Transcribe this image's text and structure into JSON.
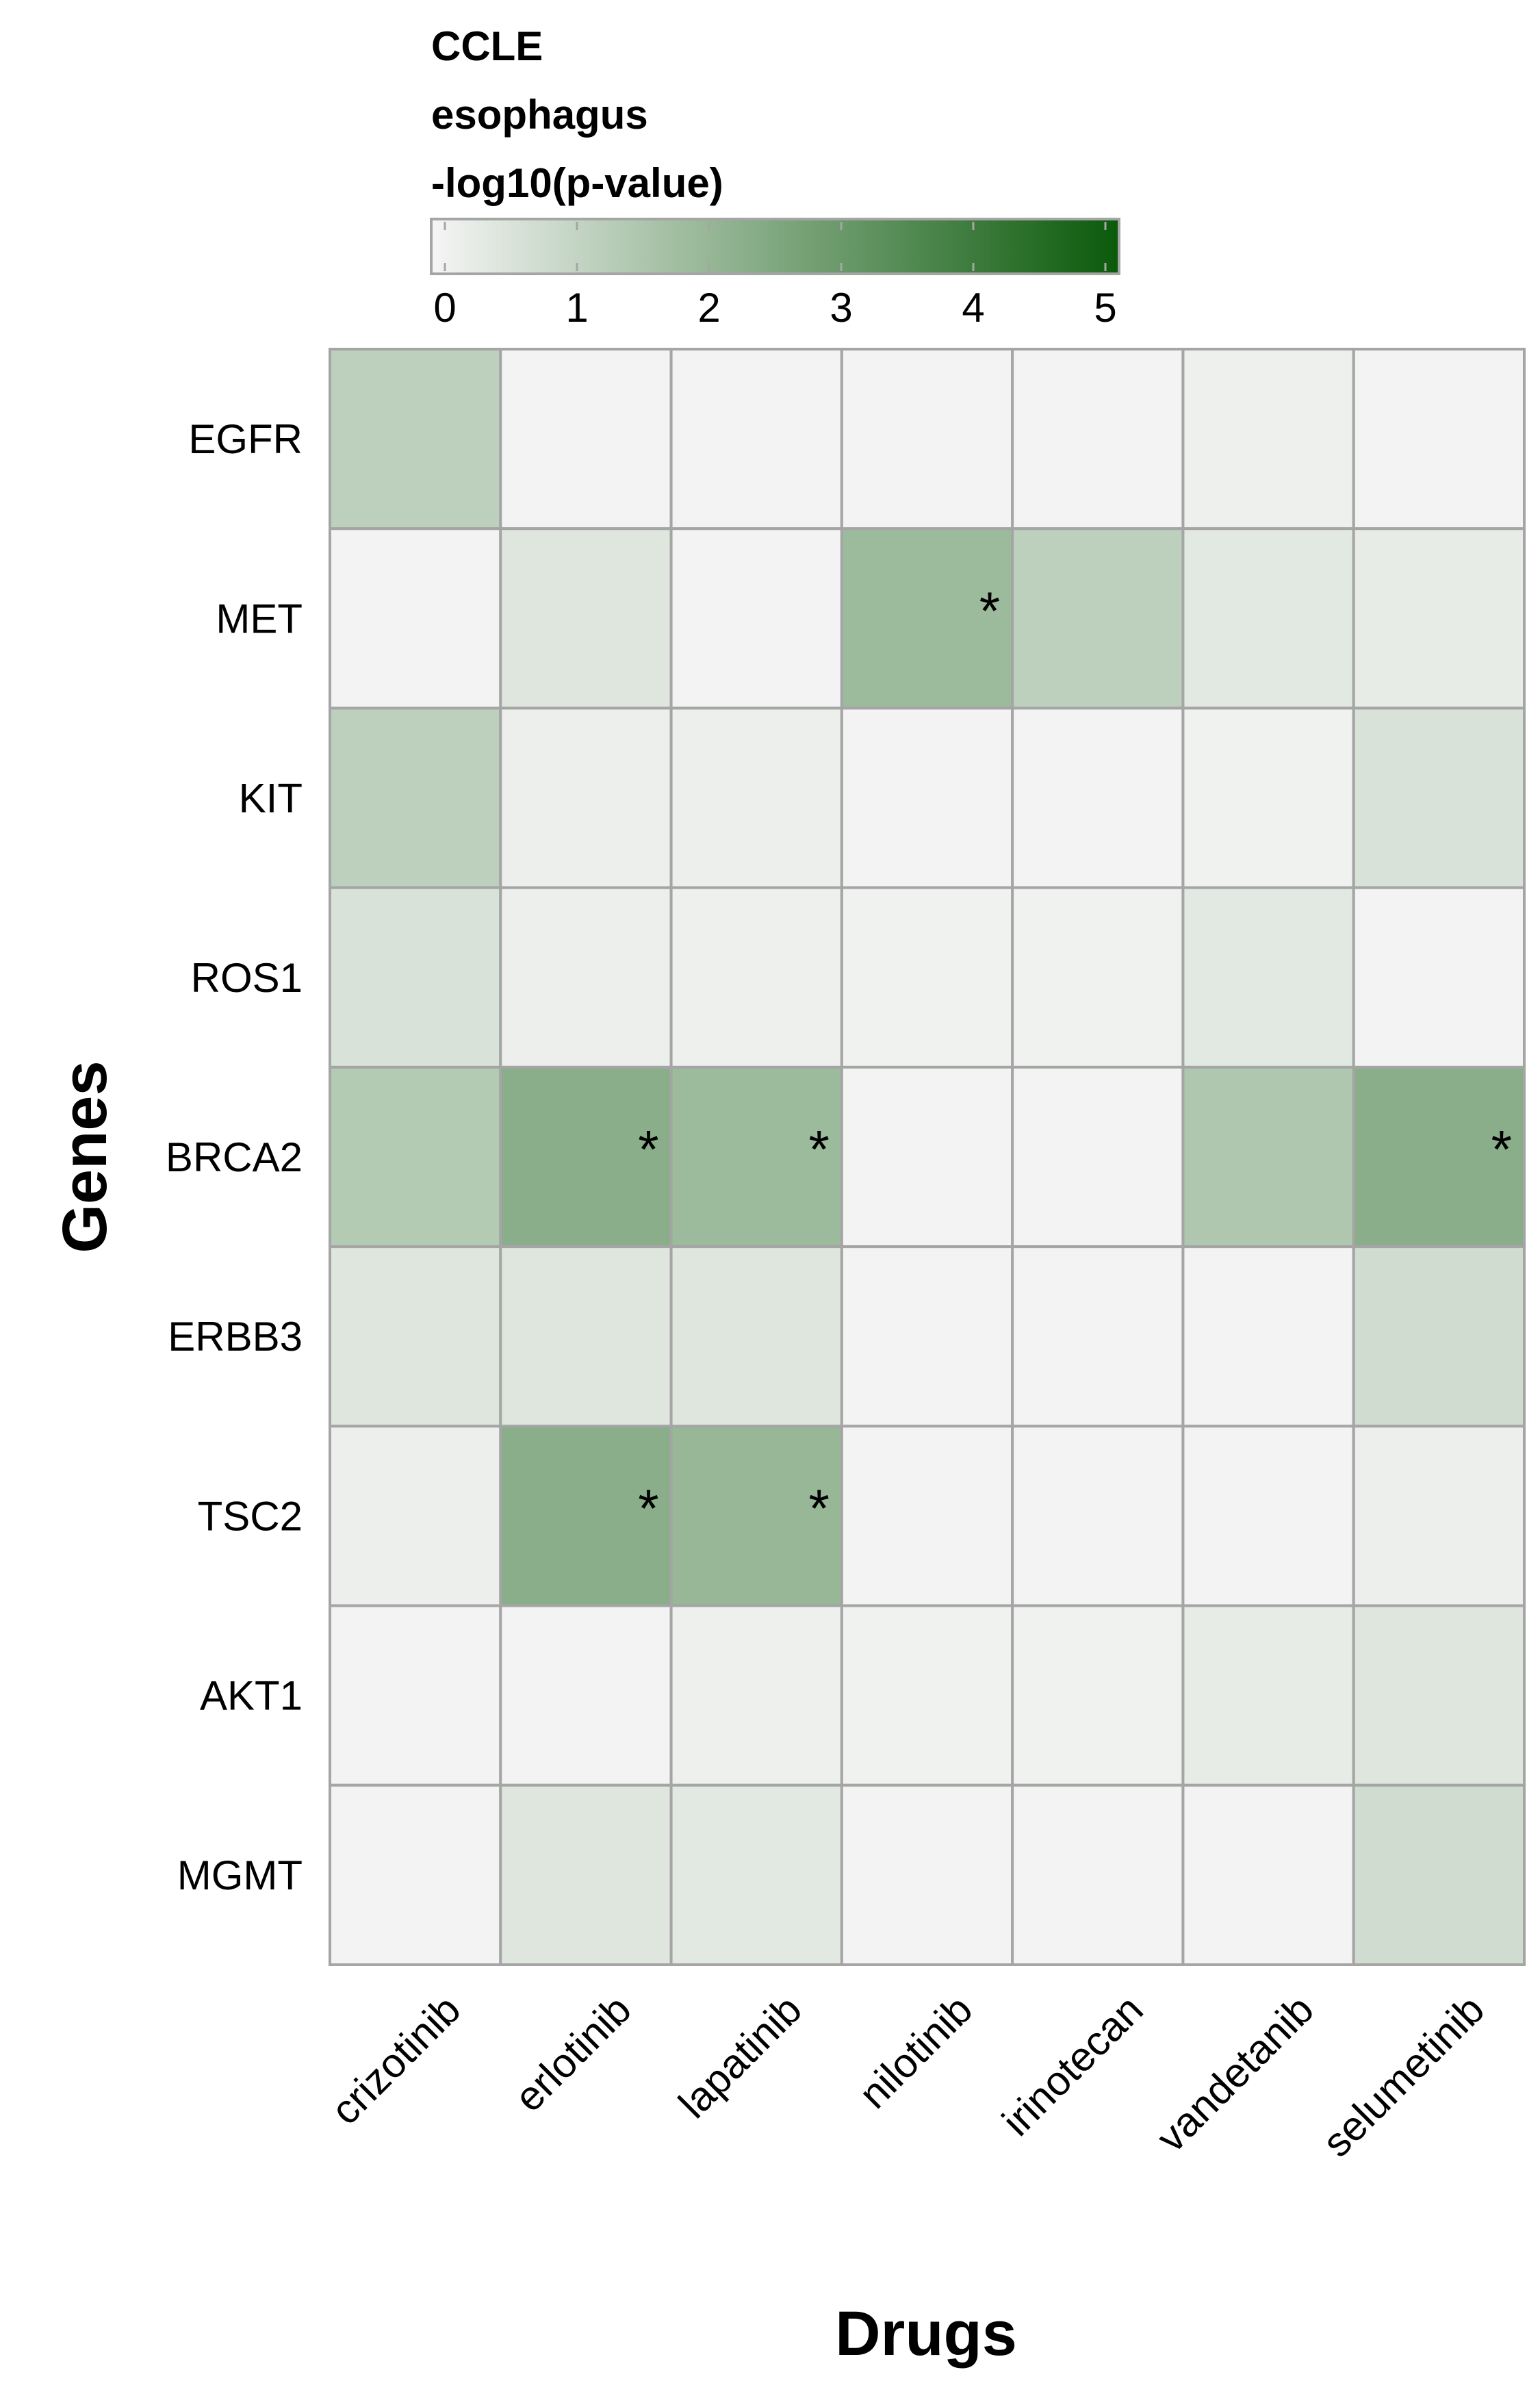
{
  "chart_data": {
    "type": "heatmap",
    "legend": {
      "title_lines": [
        "CCLE",
        "esophagus",
        "-log10(p-value)"
      ],
      "ticks": [
        "0",
        "1",
        "2",
        "3",
        "4",
        "5"
      ],
      "range": [
        0,
        5
      ],
      "color_low": "#f5f5f5",
      "color_high": "#0b5a0b"
    },
    "xlabel": "Drugs",
    "ylabel": "Genes",
    "columns": [
      "crizotinib",
      "erlotinib",
      "lapatinib",
      "nilotinib",
      "irinotecan",
      "vandetanib",
      "selumetinib"
    ],
    "rows": [
      "EGFR",
      "MET",
      "KIT",
      "ROS1",
      "BRCA2",
      "ERBB3",
      "TSC2",
      "AKT1",
      "MGMT"
    ],
    "values": [
      [
        1.2,
        0.05,
        0.05,
        0.05,
        0.05,
        0.15,
        0.05
      ],
      [
        0.05,
        0.5,
        0.05,
        1.9,
        1.2,
        0.4,
        0.3
      ],
      [
        1.2,
        0.2,
        0.2,
        0.05,
        0.05,
        0.1,
        0.6
      ],
      [
        0.6,
        0.2,
        0.15,
        0.1,
        0.1,
        0.4,
        0.05
      ],
      [
        1.4,
        2.3,
        1.9,
        0.05,
        0.05,
        1.5,
        2.3
      ],
      [
        0.5,
        0.5,
        0.5,
        0.05,
        0.05,
        0.05,
        0.8
      ],
      [
        0.2,
        2.3,
        2.0,
        0.05,
        0.05,
        0.05,
        0.2
      ],
      [
        0.05,
        0.05,
        0.15,
        0.1,
        0.1,
        0.3,
        0.5
      ],
      [
        0.05,
        0.5,
        0.4,
        0.05,
        0.05,
        0.05,
        0.8
      ]
    ],
    "significant": [
      [
        1,
        3
      ],
      [
        4,
        1
      ],
      [
        4,
        2
      ],
      [
        4,
        6
      ],
      [
        6,
        1
      ],
      [
        6,
        2
      ]
    ],
    "significance_mark": "*",
    "grid_color": "#a5a5a5"
  }
}
